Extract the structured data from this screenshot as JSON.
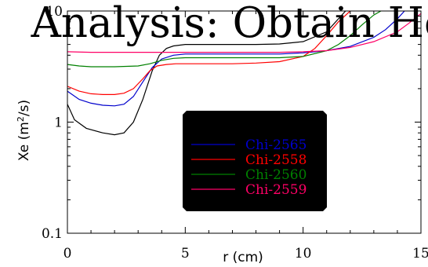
{
  "title": "Analysis: Obtain He",
  "chart_data": {
    "type": "line",
    "title": "Analysis: Obtain He",
    "xlabel": "r (cm)",
    "ylabel": "Xe (m²/s)",
    "ylabel_parts": {
      "pre": "Xe (m",
      "sup": "2",
      "post": "/s)"
    },
    "xlim": [
      0,
      15
    ],
    "ylim": [
      0.1,
      10
    ],
    "yscale": "log",
    "xticks": [
      0,
      5,
      10,
      15
    ],
    "yticks": [
      0.1,
      1,
      10
    ],
    "xtick_labels": [
      "0",
      "5",
      "10",
      "15"
    ],
    "ytick_labels": [
      "0.1",
      "1",
      "10"
    ],
    "legend_position": "center",
    "grid": false,
    "series": [
      {
        "name": "",
        "color": "#000000",
        "x": [
          0,
          0.3,
          0.8,
          1.5,
          2.0,
          2.4,
          2.8,
          3.2,
          3.6,
          3.9,
          4.2,
          4.5,
          5.0,
          6,
          7,
          8,
          9,
          10,
          11,
          11.8
        ],
        "y": [
          1.45,
          1.05,
          0.88,
          0.8,
          0.77,
          0.8,
          1.0,
          1.6,
          2.9,
          4.0,
          4.6,
          4.85,
          5.0,
          5.0,
          5.0,
          5.0,
          5.05,
          5.3,
          6.5,
          10
        ]
      },
      {
        "name": "Chi-2565",
        "color": "#0000cc",
        "x": [
          0,
          0.5,
          1.0,
          1.5,
          2.0,
          2.4,
          2.8,
          3.2,
          3.6,
          4.0,
          4.5,
          5.0,
          6,
          7,
          8,
          9,
          10,
          11,
          12,
          13,
          13.5,
          14.0,
          14.3
        ],
        "y": [
          1.9,
          1.6,
          1.48,
          1.42,
          1.4,
          1.45,
          1.7,
          2.3,
          3.1,
          3.7,
          4.0,
          4.1,
          4.1,
          4.1,
          4.1,
          4.1,
          4.2,
          4.4,
          4.8,
          5.8,
          6.8,
          8.5,
          10
        ]
      },
      {
        "name": "Chi-2558",
        "color": "#ff0000",
        "x": [
          0,
          0.5,
          1.0,
          1.5,
          2.0,
          2.4,
          2.8,
          3.2,
          3.5,
          3.8,
          4.2,
          4.6,
          5,
          6,
          7,
          8,
          9,
          10,
          10.5,
          11,
          11.5,
          12.0
        ],
        "y": [
          2.1,
          1.9,
          1.8,
          1.77,
          1.77,
          1.82,
          2.0,
          2.45,
          2.9,
          3.2,
          3.3,
          3.35,
          3.35,
          3.35,
          3.35,
          3.4,
          3.5,
          3.9,
          4.6,
          6.0,
          8.0,
          10
        ]
      },
      {
        "name": "Chi-2560",
        "color": "#008000",
        "x": [
          0,
          0.5,
          1.0,
          2.0,
          3.0,
          3.5,
          4.0,
          4.5,
          5.0,
          6,
          7,
          8,
          9,
          10,
          11,
          11.5,
          12.0,
          12.5,
          13.0,
          13.3
        ],
        "y": [
          3.3,
          3.2,
          3.15,
          3.15,
          3.2,
          3.35,
          3.6,
          3.75,
          3.8,
          3.8,
          3.8,
          3.8,
          3.8,
          3.9,
          4.4,
          5.0,
          6.0,
          7.5,
          9.2,
          10
        ]
      },
      {
        "name": "Chi-2559",
        "color": "#ff0066",
        "x": [
          0,
          1,
          2,
          3,
          4,
          5,
          6,
          7,
          8,
          9,
          10,
          11,
          12,
          13,
          14,
          14.5,
          15
        ],
        "y": [
          4.3,
          4.25,
          4.25,
          4.25,
          4.25,
          4.25,
          4.25,
          4.25,
          4.25,
          4.25,
          4.3,
          4.4,
          4.7,
          5.3,
          6.5,
          7.8,
          9.5
        ]
      }
    ]
  }
}
